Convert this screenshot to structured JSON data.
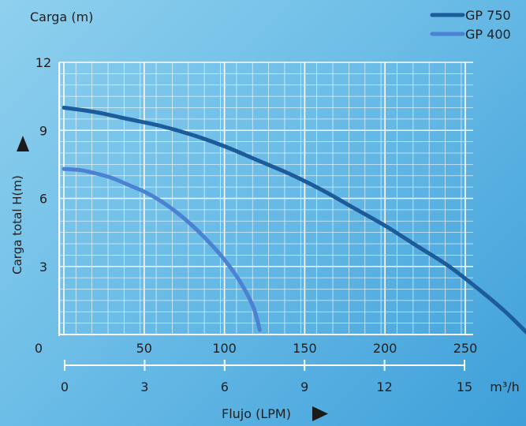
{
  "chart_data": {
    "type": "line",
    "title": "",
    "top_label": "Carga (m)",
    "ylabel": "Carga total H(m)",
    "xlabel": "Flujo (LPM)",
    "ylim": [
      0,
      12
    ],
    "xlim": [
      0,
      250
    ],
    "y_ticks": [
      "3",
      "6",
      "9",
      "12"
    ],
    "x_origin_label": "0",
    "x_ticks": [
      "50",
      "100",
      "150",
      "200",
      "250"
    ],
    "x2_label": "m³/h",
    "x2_ticks": [
      "0",
      "3",
      "6",
      "9",
      "12",
      "15"
    ],
    "grid": true,
    "legend_position": "top-right",
    "series": [
      {
        "name": "GP 750",
        "color": "#1d5c9a",
        "points": [
          [
            0,
            10.0
          ],
          [
            20,
            9.8
          ],
          [
            40,
            9.5
          ],
          [
            60,
            9.2
          ],
          [
            80,
            8.8
          ],
          [
            100,
            8.3
          ],
          [
            120,
            7.7
          ],
          [
            140,
            7.1
          ],
          [
            160,
            6.4
          ],
          [
            180,
            5.6
          ],
          [
            200,
            4.8
          ],
          [
            220,
            3.9
          ],
          [
            240,
            3.0
          ],
          [
            260,
            1.9
          ],
          [
            275,
            1.0
          ],
          [
            288,
            0.1
          ]
        ]
      },
      {
        "name": "GP 400",
        "color": "#4b82d2",
        "points": [
          [
            0,
            7.3
          ],
          [
            10,
            7.25
          ],
          [
            20,
            7.1
          ],
          [
            30,
            6.9
          ],
          [
            40,
            6.6
          ],
          [
            50,
            6.3
          ],
          [
            60,
            5.9
          ],
          [
            70,
            5.4
          ],
          [
            80,
            4.8
          ],
          [
            90,
            4.1
          ],
          [
            100,
            3.3
          ],
          [
            110,
            2.3
          ],
          [
            118,
            1.2
          ],
          [
            122,
            0.2
          ]
        ]
      }
    ]
  }
}
